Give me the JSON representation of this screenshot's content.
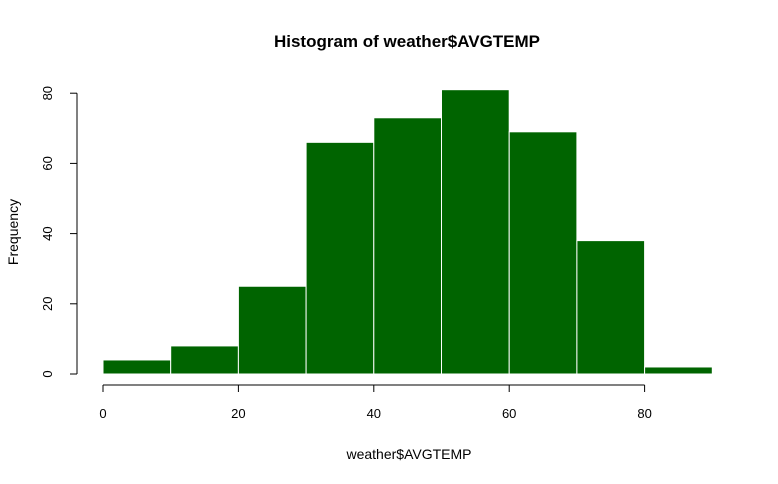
{
  "chart_data": {
    "type": "bar",
    "title": "Histogram of weather$AVGTEMP",
    "xlabel": "weather$AVGTEMP",
    "ylabel": "Frequency",
    "bin_edges": [
      0,
      10,
      20,
      30,
      40,
      50,
      60,
      70,
      80,
      90
    ],
    "values": [
      4,
      8,
      25,
      66,
      73,
      81,
      69,
      38,
      2
    ],
    "xlim": [
      0,
      90
    ],
    "ylim": [
      0,
      80
    ],
    "x_ticks": [
      0,
      20,
      40,
      60,
      80
    ],
    "y_ticks": [
      0,
      20,
      40,
      60,
      80
    ],
    "bar_color": "#006400",
    "grid": false
  }
}
